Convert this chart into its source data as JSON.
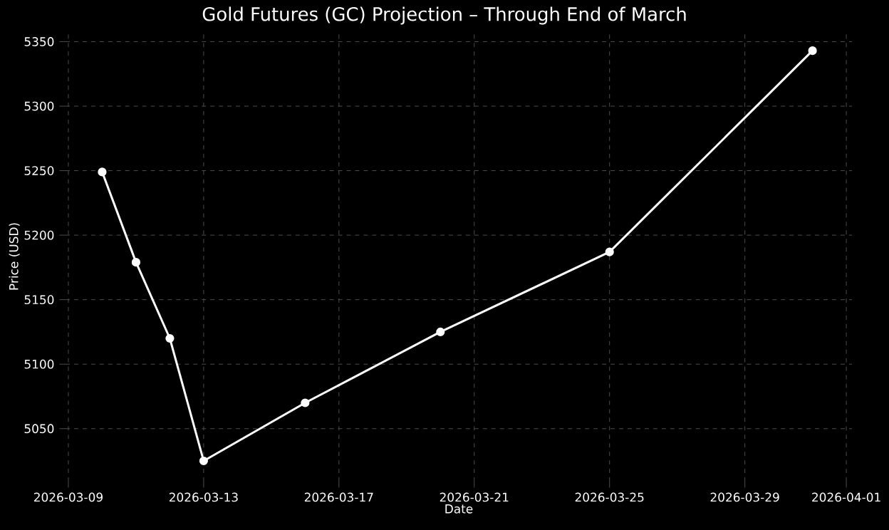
{
  "chart_data": {
    "type": "line",
    "title": "Gold Futures (GC) Projection – Through End of March",
    "xlabel": "Date",
    "ylabel": "Price (USD)",
    "x": [
      "2026-03-10",
      "2026-03-11",
      "2026-03-12",
      "2026-03-13",
      "2026-03-16",
      "2026-03-20",
      "2026-03-25",
      "2026-03-31"
    ],
    "series": [
      {
        "color": "#ffffff",
        "values": [
          5249,
          5179,
          5120,
          5025,
          5070,
          5125,
          5187,
          5343
        ]
      }
    ],
    "xlim": [
      "2026-03-08T22:00",
      "2026-04-01T04:00"
    ],
    "ylim": [
      5009,
      5358
    ],
    "xticks": [
      "2026-03-09",
      "2026-03-13",
      "2026-03-17",
      "2026-03-21",
      "2026-03-25",
      "2026-03-29",
      "2026-04-01"
    ],
    "yticks": [
      5050,
      5100,
      5150,
      5200,
      5250,
      5300,
      5350
    ],
    "grid": true,
    "marker": "circle",
    "line_style": "solid"
  }
}
